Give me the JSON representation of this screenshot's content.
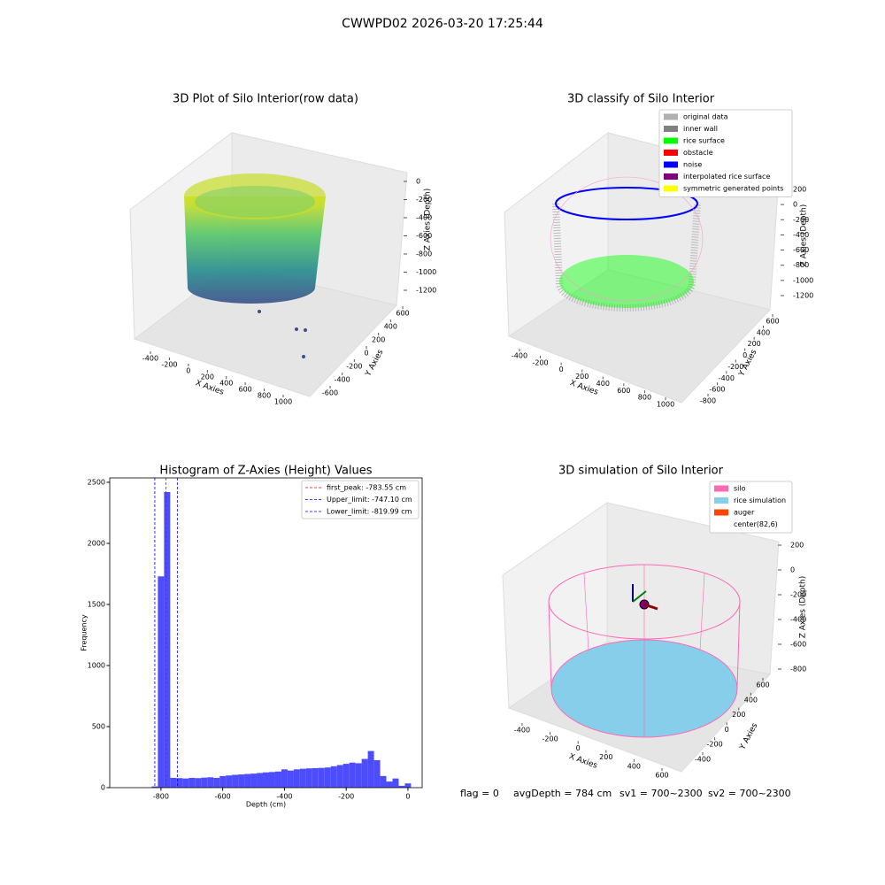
{
  "suptitle": "CWWPD02 2026-03-20 17:25:44",
  "chart_data": [
    {
      "type": "scatter3d",
      "title": "3D Plot of Silo Interior(row data)",
      "xlabel": "X Axies",
      "ylabel": "Y Axies",
      "zlabel": "Z Axies (Depth)",
      "xticks": [
        -400,
        -200,
        0,
        200,
        400,
        600,
        800,
        1000
      ],
      "yticks": [
        -600,
        -400,
        -200,
        0,
        200,
        400,
        600
      ],
      "zticks": [
        0,
        -200,
        -400,
        -600,
        -800,
        -1000,
        -1200
      ]
    },
    {
      "type": "scatter3d",
      "title": "3D classify of Silo Interior",
      "xlabel": "X Axies",
      "ylabel": "Y Axies",
      "zlabel": "Z Axies (Depth)",
      "xticks": [
        -400,
        -200,
        0,
        200,
        400,
        600,
        800,
        1000
      ],
      "yticks": [
        -800,
        -600,
        -400,
        -200,
        0,
        200,
        400,
        600
      ],
      "zticks": [
        200,
        0,
        -200,
        -400,
        -600,
        -800,
        -1000,
        -1200
      ],
      "series": [
        {
          "name": "original data",
          "color": "#b0b0b0"
        },
        {
          "name": "inner wall",
          "color": "#808080"
        },
        {
          "name": "rice surface",
          "color": "#00ff00"
        },
        {
          "name": "obstacle",
          "color": "#ff0000"
        },
        {
          "name": "noise",
          "color": "#0000ff"
        },
        {
          "name": "interpolated rice surface",
          "color": "#800080"
        },
        {
          "name": "symmetric generated points",
          "color": "#ffff00"
        }
      ]
    },
    {
      "type": "histogram",
      "title": "Histogram of Z-Axies (Height) Values",
      "xlabel": "Depth (cm)",
      "ylabel": "Frequency",
      "color": "#4d4dff",
      "bins": [
        -830,
        -810,
        -790,
        -770,
        -750,
        -730,
        -710,
        -690,
        -670,
        -650,
        -630,
        -610,
        -590,
        -570,
        -550,
        -530,
        -510,
        -490,
        -470,
        -450,
        -430,
        -410,
        -390,
        -370,
        -350,
        -330,
        -310,
        -290,
        -270,
        -250,
        -230,
        -210,
        -190,
        -170,
        -150,
        -130,
        -110,
        -90,
        -70,
        -50,
        -30,
        -10,
        10
      ],
      "values": [
        10,
        1730,
        2420,
        80,
        78,
        75,
        80,
        78,
        82,
        85,
        80,
        95,
        100,
        105,
        108,
        112,
        115,
        120,
        125,
        128,
        132,
        150,
        140,
        150,
        155,
        158,
        160,
        162,
        165,
        175,
        185,
        195,
        205,
        200,
        235,
        300,
        225,
        95,
        50,
        75,
        15,
        35
      ],
      "xlim": [
        -966,
        46
      ],
      "ylim": [
        0,
        2536
      ],
      "xticks": [
        -800,
        -600,
        -400,
        -200,
        0
      ],
      "yticks": [
        0,
        500,
        1000,
        1500,
        2000,
        2500
      ],
      "vlines": [
        {
          "name": "first_peak: -783.55 cm",
          "value": -783.55,
          "color": "#ff0000"
        },
        {
          "name": "Upper_limit: -747.10 cm",
          "value": -747.1,
          "color": "#0000ff"
        },
        {
          "name": "Lower_limit: -819.99 cm",
          "value": -819.99,
          "color": "#0000ff"
        }
      ]
    },
    {
      "type": "scatter3d",
      "title": "3D simulation of Silo Interior",
      "xlabel": "X Axies",
      "ylabel": "Y Axies",
      "zlabel": "Z Axies (Depth)",
      "xticks": [
        -400,
        -200,
        0,
        200,
        400,
        600
      ],
      "yticks": [
        -400,
        -200,
        0,
        200,
        400,
        600
      ],
      "zticks": [
        200,
        0,
        -200,
        -400,
        -600,
        -800
      ],
      "series": [
        {
          "name": "silo",
          "color": "#ff69b4"
        },
        {
          "name": "rice simulation",
          "color": "#87ceeb"
        },
        {
          "name": "auger",
          "color": "#ff4500"
        },
        {
          "name": "center(82,6)",
          "color": "#ffffff"
        }
      ]
    }
  ],
  "status": [
    "flag = 0",
    "avgDepth = 784 cm",
    "sv1 = 700~2300",
    "sv2 = 700~2300"
  ]
}
